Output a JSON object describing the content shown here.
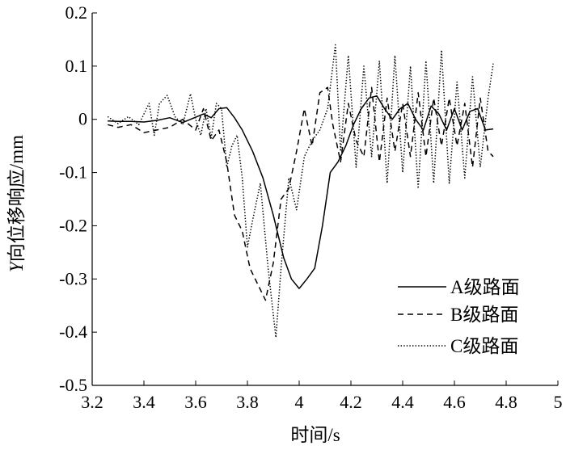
{
  "chart_data": {
    "type": "line",
    "title": "",
    "xlabel": "时间/s",
    "ylabel_italic": "Y",
    "ylabel_rest": "向位移响应/mm",
    "xlim": [
      3.2,
      5
    ],
    "ylim": [
      -0.5,
      0.2
    ],
    "xticks": [
      3.2,
      3.4,
      3.6,
      3.8,
      4,
      4.2,
      4.4,
      4.6,
      4.8,
      5
    ],
    "xtick_labels": [
      "3.2",
      "3.4",
      "3.6",
      "3.8",
      "4",
      "4.2",
      "4.4",
      "4.6",
      "4.8",
      "5"
    ],
    "yticks": [
      -0.5,
      -0.4,
      -0.3,
      -0.2,
      -0.1,
      0,
      0.1,
      0.2
    ],
    "ytick_labels": [
      "-0.5",
      "-0.4",
      "-0.3",
      "-0.2",
      "-0.1",
      "0",
      "0.1",
      "0.2"
    ],
    "grid": false,
    "legend_position": "bottom-right",
    "series": [
      {
        "name": "A级路面",
        "style": "solid",
        "x": [
          3.26,
          3.3,
          3.35,
          3.4,
          3.45,
          3.5,
          3.55,
          3.6,
          3.63,
          3.66,
          3.69,
          3.72,
          3.75,
          3.78,
          3.82,
          3.86,
          3.9,
          3.94,
          3.97,
          4.0,
          4.03,
          4.06,
          4.09,
          4.12,
          4.15,
          4.18,
          4.21,
          4.24,
          4.27,
          4.3,
          4.33,
          4.36,
          4.39,
          4.42,
          4.45,
          4.48,
          4.51,
          4.54,
          4.57,
          4.6,
          4.63,
          4.66,
          4.69,
          4.72,
          4.75
        ],
        "y": [
          -0.003,
          -0.004,
          -0.004,
          -0.005,
          -0.002,
          0.003,
          -0.006,
          0.004,
          0.01,
          0.003,
          0.02,
          0.022,
          0.003,
          -0.02,
          -0.06,
          -0.11,
          -0.18,
          -0.26,
          -0.3,
          -0.318,
          -0.3,
          -0.28,
          -0.2,
          -0.1,
          -0.08,
          -0.05,
          -0.01,
          0.02,
          0.04,
          0.044,
          0.02,
          0.0,
          0.02,
          0.03,
          0.0,
          -0.02,
          0.025,
          0.01,
          -0.02,
          0.02,
          -0.02,
          0.015,
          0.02,
          -0.02,
          -0.018
        ]
      },
      {
        "name": "B级路面",
        "style": "dashed",
        "x": [
          3.26,
          3.3,
          3.35,
          3.4,
          3.45,
          3.5,
          3.55,
          3.6,
          3.63,
          3.66,
          3.69,
          3.72,
          3.75,
          3.78,
          3.81,
          3.84,
          3.87,
          3.9,
          3.93,
          3.96,
          3.99,
          4.02,
          4.05,
          4.08,
          4.11,
          4.13,
          4.16,
          4.19,
          4.22,
          4.25,
          4.28,
          4.31,
          4.34,
          4.37,
          4.4,
          4.43,
          4.46,
          4.49,
          4.52,
          4.55,
          4.58,
          4.61,
          4.64,
          4.67,
          4.7,
          4.73,
          4.75
        ],
        "y": [
          -0.01,
          -0.015,
          -0.01,
          -0.025,
          -0.02,
          -0.015,
          0.0,
          -0.02,
          0.02,
          -0.04,
          -0.02,
          -0.08,
          -0.18,
          -0.21,
          -0.28,
          -0.31,
          -0.34,
          -0.27,
          -0.15,
          -0.13,
          -0.06,
          0.02,
          -0.05,
          0.05,
          0.06,
          -0.01,
          -0.08,
          0.03,
          -0.04,
          -0.07,
          0.06,
          -0.08,
          0.04,
          -0.06,
          0.03,
          -0.07,
          0.05,
          -0.07,
          0.04,
          -0.05,
          0.04,
          -0.05,
          0.03,
          -0.09,
          0.04,
          -0.06,
          -0.07
        ]
      },
      {
        "name": "C级路面",
        "style": "dotted",
        "x": [
          3.26,
          3.3,
          3.34,
          3.38,
          3.42,
          3.44,
          3.46,
          3.49,
          3.52,
          3.55,
          3.58,
          3.6,
          3.62,
          3.64,
          3.66,
          3.68,
          3.7,
          3.72,
          3.74,
          3.76,
          3.78,
          3.8,
          3.82,
          3.85,
          3.88,
          3.91,
          3.93,
          3.96,
          3.99,
          4.02,
          4.05,
          4.08,
          4.11,
          4.14,
          4.16,
          4.19,
          4.22,
          4.25,
          4.28,
          4.31,
          4.34,
          4.37,
          4.4,
          4.43,
          4.46,
          4.49,
          4.52,
          4.55,
          4.58,
          4.61,
          4.64,
          4.67,
          4.7,
          4.73,
          4.75
        ],
        "y": [
          0.005,
          -0.008,
          0.005,
          -0.01,
          0.03,
          -0.03,
          0.03,
          0.045,
          0.005,
          -0.01,
          0.048,
          0.0,
          -0.03,
          0.02,
          -0.035,
          0.03,
          0.02,
          -0.09,
          -0.05,
          -0.03,
          -0.11,
          -0.24,
          -0.19,
          -0.12,
          -0.28,
          -0.41,
          -0.28,
          -0.11,
          -0.17,
          -0.07,
          -0.04,
          -0.02,
          0.02,
          0.14,
          -0.06,
          0.12,
          -0.09,
          0.1,
          -0.07,
          0.11,
          -0.12,
          0.12,
          -0.1,
          0.1,
          -0.13,
          0.11,
          -0.12,
          0.13,
          -0.12,
          0.07,
          -0.11,
          0.08,
          -0.09,
          0.04,
          0.105
        ]
      }
    ]
  }
}
